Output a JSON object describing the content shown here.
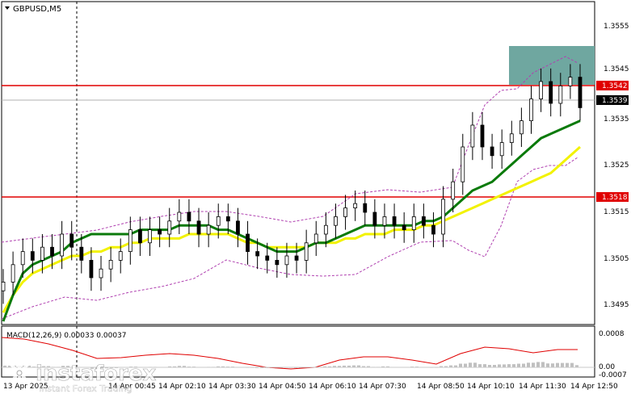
{
  "window": {
    "symbol_title": "GBPUSD,M5"
  },
  "colors": {
    "background": "#ffffff",
    "candle": "#000000",
    "resistance_line": "#e00000",
    "support_line": "#e00000",
    "ma_green": "#0a7a0a",
    "ma_yellow": "#f2f200",
    "bollinger": "#b040b0",
    "highlight_box": "#6fa7a0",
    "macd_hist": "#c0c0c0",
    "macd_signal": "#e00000",
    "current_price_tag": "#000000"
  },
  "price_axis": {
    "ticks": [
      "1.3555",
      "1.3545",
      "1.3535",
      "1.3525",
      "1.3515",
      "1.3505",
      "1.3495"
    ],
    "tags": [
      {
        "label": "1.3542",
        "kind": "resistance"
      },
      {
        "label": "1.3539",
        "kind": "current"
      },
      {
        "label": "1.3518",
        "kind": "support"
      }
    ]
  },
  "macd": {
    "label": "MACD(12,26,9) 0.00033 0.00037",
    "ticks": [
      "0.0008",
      "0.00",
      "-0.0007"
    ]
  },
  "time_axis": {
    "ticks": [
      "13 Apr 2025",
      "14 Apr 00:45",
      "14 Apr 02:10",
      "14 Apr 03:30",
      "14 Apr 04:50",
      "14 Apr 06:10",
      "14 Apr 07:30",
      "14 Apr 08:50",
      "14 Apr 10:10",
      "14 Apr 11:30",
      "14 Apr 12:50"
    ]
  },
  "watermark": {
    "brand": "instaforex",
    "tagline": "Instant Forex Trading"
  },
  "chart_data": {
    "type": "candlestick",
    "symbol": "GBPUSD",
    "timeframe": "M5",
    "ylim": [
      1.349,
      1.356
    ],
    "levels": [
      {
        "label": "1.3542",
        "value": 1.3542
      },
      {
        "label": "1.3518",
        "value": 1.3518
      }
    ],
    "current_price": 1.3539,
    "series": [
      {
        "name": "close",
        "values": [
          1.3499,
          1.3503,
          1.3506,
          1.3504,
          1.3507,
          1.3505,
          1.351,
          1.3507,
          1.3504,
          1.35,
          1.3502,
          1.3504,
          1.3506,
          1.3511,
          1.3508,
          1.3511,
          1.351,
          1.3513,
          1.3515,
          1.3513,
          1.351,
          1.3512,
          1.3514,
          1.3513,
          1.351,
          1.3506,
          1.3505,
          1.3504,
          1.3503,
          1.3505,
          1.3504,
          1.3508,
          1.351,
          1.3512,
          1.3514,
          1.3516,
          1.3517,
          1.3515,
          1.3512,
          1.3514,
          1.3512,
          1.3511,
          1.3514,
          1.3512,
          1.351,
          1.3518,
          1.3522,
          1.353,
          1.3535,
          1.353,
          1.3528,
          1.3531,
          1.3533,
          1.3536,
          1.3541,
          1.3545,
          1.354,
          1.3544,
          1.3546,
          1.3539
        ]
      },
      {
        "name": "ma_green",
        "values": [
          1.349,
          1.3496,
          1.3501,
          1.3503,
          1.3504,
          1.3505,
          1.3506,
          1.3508,
          1.3509,
          1.351,
          1.351,
          1.351,
          1.351,
          1.351,
          1.3511,
          1.3511,
          1.3511,
          1.3511,
          1.3512,
          1.3512,
          1.3512,
          1.3512,
          1.3511,
          1.3511,
          1.351,
          1.3509,
          1.3508,
          1.3507,
          1.3506,
          1.3506,
          1.3506,
          1.3507,
          1.3508,
          1.3508,
          1.3509,
          1.351,
          1.3511,
          1.3512,
          1.3512,
          1.3512,
          1.3512,
          1.3512,
          1.3512,
          1.3513,
          1.3513,
          1.3514,
          1.3516,
          1.3518,
          1.352,
          1.3521,
          1.3522,
          1.3524,
          1.3526,
          1.3528,
          1.353,
          1.3532,
          1.3533,
          1.3534,
          1.3535,
          1.3536
        ]
      },
      {
        "name": "ma_yellow",
        "values": [
          1.3492,
          1.3496,
          1.3499,
          1.3501,
          1.3502,
          1.3503,
          1.3504,
          1.3505,
          1.3505,
          1.3506,
          1.3506,
          1.3507,
          1.3507,
          1.3508,
          1.3508,
          1.3509,
          1.3509,
          1.3509,
          1.3509,
          1.351,
          1.351,
          1.351,
          1.351,
          1.351,
          1.3509,
          1.3508,
          1.3508,
          1.3507,
          1.3507,
          1.3507,
          1.3507,
          1.3507,
          1.3508,
          1.3508,
          1.3508,
          1.3509,
          1.3509,
          1.351,
          1.351,
          1.351,
          1.3511,
          1.3511,
          1.3511,
          1.3512,
          1.3512,
          1.3513,
          1.3514,
          1.3515,
          1.3516,
          1.3517,
          1.3518,
          1.3519,
          1.352,
          1.3521,
          1.3522,
          1.3523,
          1.3524,
          1.3526,
          1.3528,
          1.353
        ]
      }
    ]
  }
}
